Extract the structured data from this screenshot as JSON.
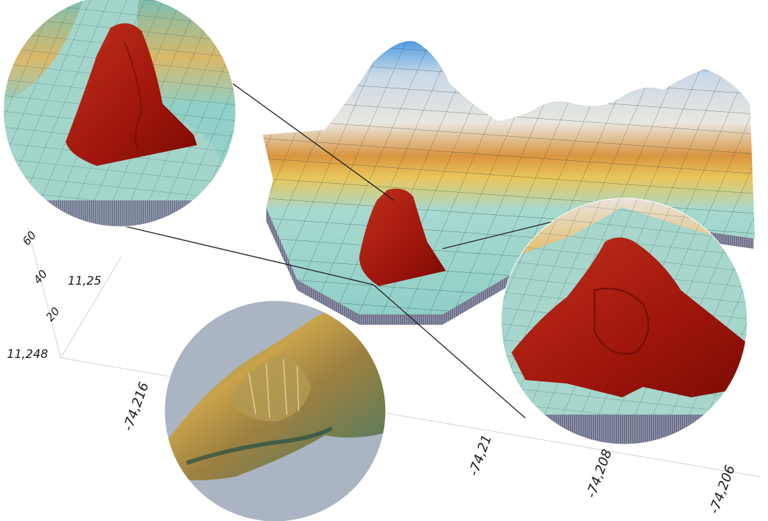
{
  "chart_data": {
    "type": "surface",
    "title": "",
    "xlabel": "",
    "ylabel": "",
    "zlabel": "",
    "x_ticks": [
      "-74,216",
      "-74,21",
      "-74,208",
      "-74,206"
    ],
    "y_ticks": [
      "11,248",
      "11,25"
    ],
    "z_ticks": [
      "20",
      "40",
      "60"
    ],
    "zlim": [
      0,
      70
    ],
    "colormap": [
      "#8fcfc6",
      "#9ed7cf",
      "#e9c65a",
      "#d98a3a",
      "#e8e8e8",
      "#4d9be0"
    ],
    "highlight_color": "#a8160c",
    "insets": 3,
    "grid": true
  }
}
